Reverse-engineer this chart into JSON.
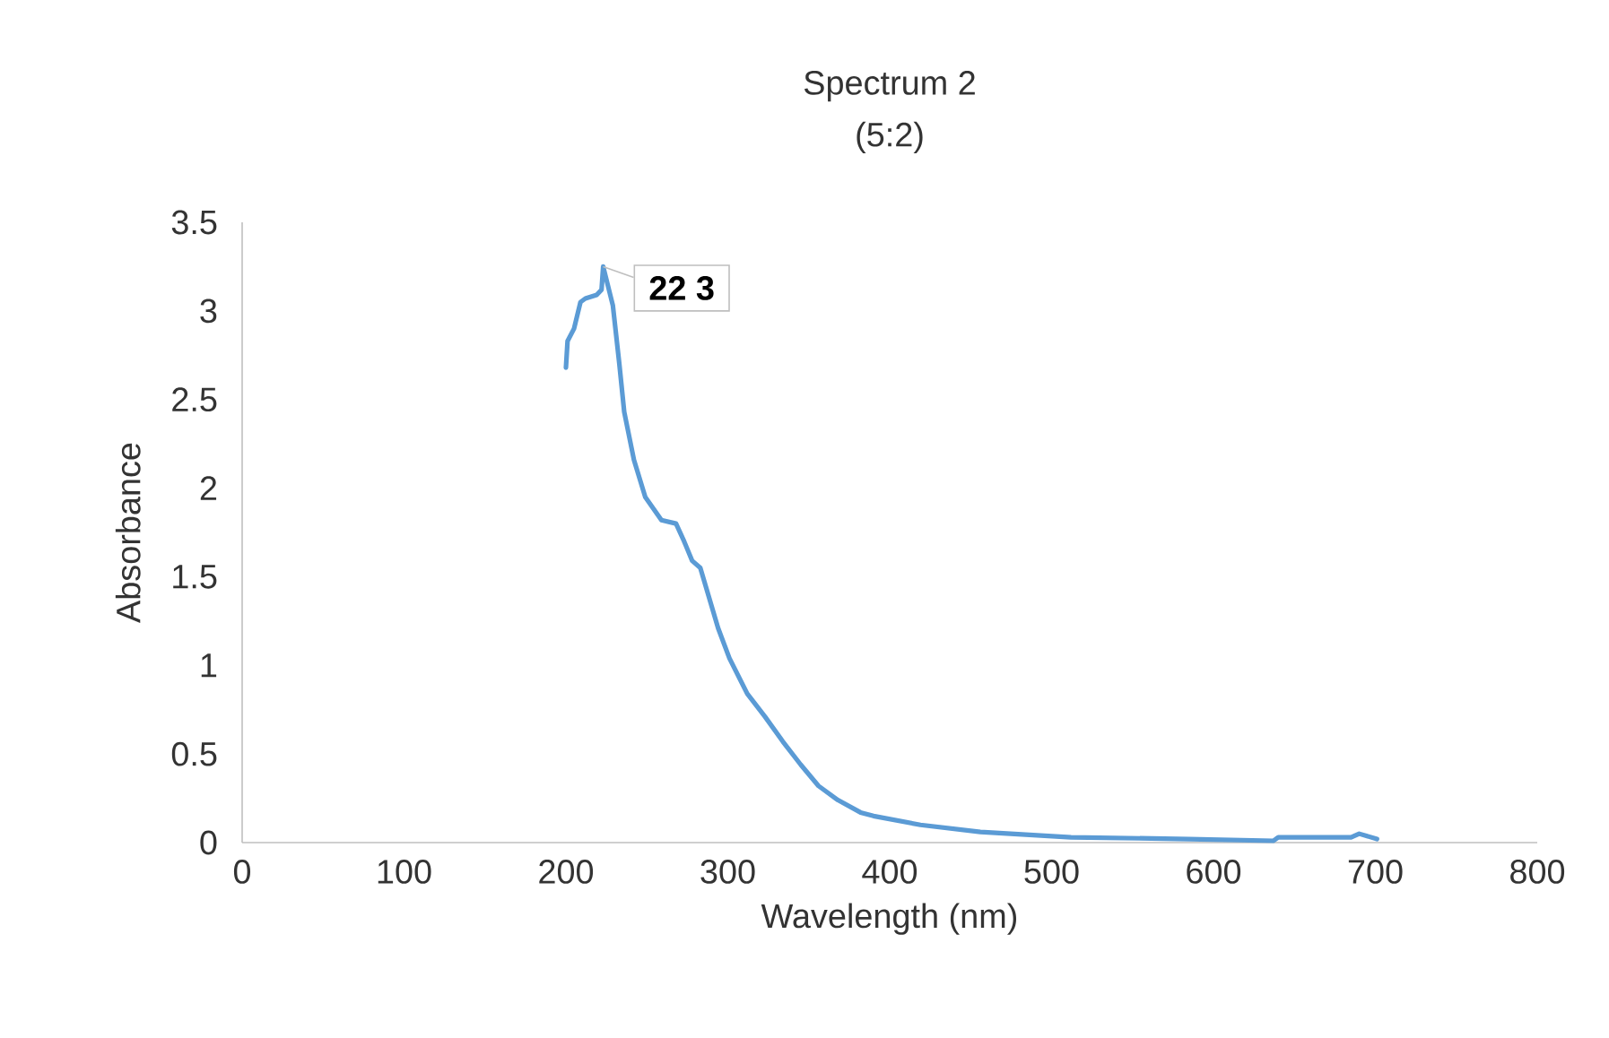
{
  "chart_data": {
    "type": "line",
    "title": "Spectrum 2",
    "subtitle": "(5:2)",
    "xlabel": "Wavelength (nm)",
    "ylabel": "Absorbance",
    "xlim": [
      0,
      800
    ],
    "xticks": [
      0,
      100,
      200,
      300,
      400,
      500,
      600,
      700,
      800
    ],
    "ylim": [
      0,
      3.5
    ],
    "yticks": [
      0,
      0.5,
      1,
      1.5,
      2,
      2.5,
      3,
      3.5
    ],
    "marker": "none",
    "line_style": "solid",
    "series": [
      {
        "color": "#5b9bd5",
        "x": [
          200,
          201,
          205,
          209,
          212,
          219,
          222,
          223,
          229,
          233,
          236,
          242,
          249,
          259,
          268,
          273,
          278,
          283,
          294,
          301,
          312,
          323,
          334,
          345,
          356,
          368,
          382,
          390,
          419,
          456,
          512,
          585,
          637,
          640,
          685,
          690,
          701
        ],
        "values": [
          2.68,
          2.83,
          2.9,
          3.05,
          3.07,
          3.09,
          3.12,
          3.25,
          3.03,
          2.7,
          2.43,
          2.16,
          1.95,
          1.82,
          1.8,
          1.7,
          1.59,
          1.55,
          1.21,
          1.04,
          0.84,
          0.71,
          0.57,
          0.44,
          0.32,
          0.24,
          0.17,
          0.15,
          0.1,
          0.06,
          0.03,
          0.02,
          0.01,
          0.03,
          0.03,
          0.05,
          0.02
        ]
      }
    ],
    "annotations": [
      {
        "text": "22 3",
        "x": 223,
        "y": 3.25
      }
    ]
  }
}
